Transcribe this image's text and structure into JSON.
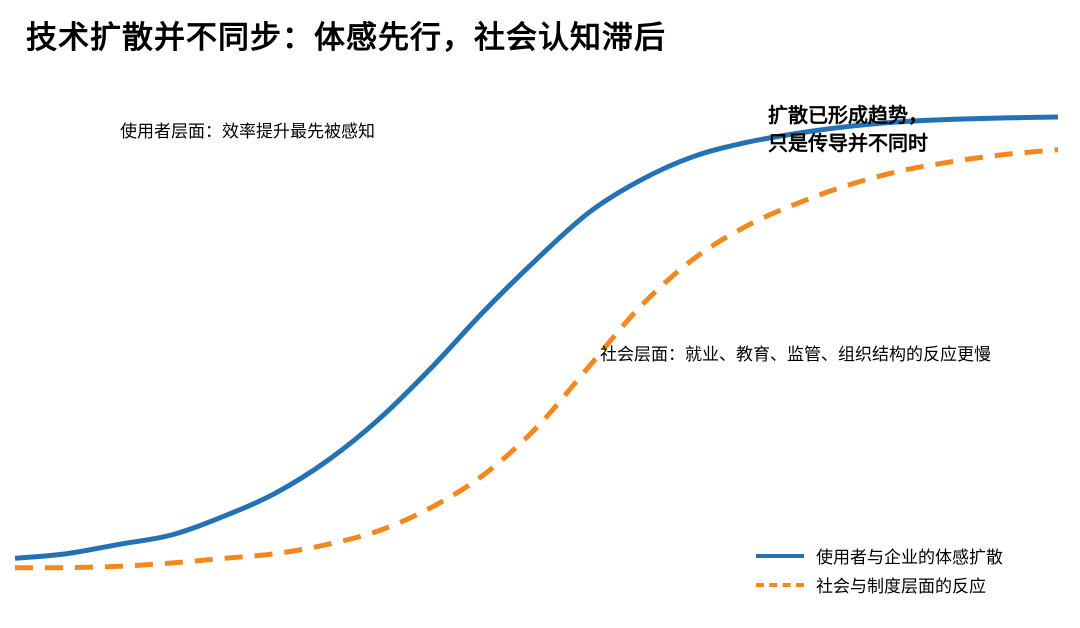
{
  "title": "技术扩散并不同步：体感先行，社会认知滞后",
  "colors": {
    "user_series": "#2471b4",
    "society_series": "#f5871f"
  },
  "chart_data": {
    "type": "line",
    "title": "技术扩散并不同步：体感先行，社会认知滞后",
    "xlabel": "",
    "ylabel": "",
    "grid": false,
    "axes_visible": false,
    "legend_position": "bottom-right",
    "x": [
      0,
      1,
      2,
      3,
      4,
      5,
      6,
      7,
      8,
      9,
      10,
      11,
      12,
      13,
      14,
      15,
      16,
      17,
      18,
      19,
      20
    ],
    "xlim": [
      0,
      20
    ],
    "ylim": [
      0,
      1
    ],
    "series": [
      {
        "name": "使用者与企业的体感扩散",
        "style": "solid",
        "color": "#2471b4",
        "values": [
          0.04,
          0.05,
          0.07,
          0.09,
          0.13,
          0.18,
          0.25,
          0.34,
          0.45,
          0.57,
          0.68,
          0.78,
          0.85,
          0.9,
          0.93,
          0.95,
          0.965,
          0.975,
          0.98,
          0.983,
          0.985
        ]
      },
      {
        "name": "社会与制度层面的反应",
        "style": "dashed",
        "color": "#f5871f",
        "values": [
          0.02,
          0.02,
          0.023,
          0.03,
          0.04,
          0.05,
          0.07,
          0.1,
          0.15,
          0.22,
          0.32,
          0.45,
          0.58,
          0.68,
          0.75,
          0.8,
          0.84,
          0.87,
          0.89,
          0.905,
          0.915
        ]
      }
    ],
    "annotations": [
      {
        "id": "user",
        "text": "使用者层面：效率提升最先被感知"
      },
      {
        "id": "society",
        "text": "社会层面：就业、教育、监管、组织结构的反应更慢"
      },
      {
        "id": "trend",
        "lines": [
          "扩散已形成趋势，",
          "只是传导并不同时"
        ]
      }
    ]
  }
}
